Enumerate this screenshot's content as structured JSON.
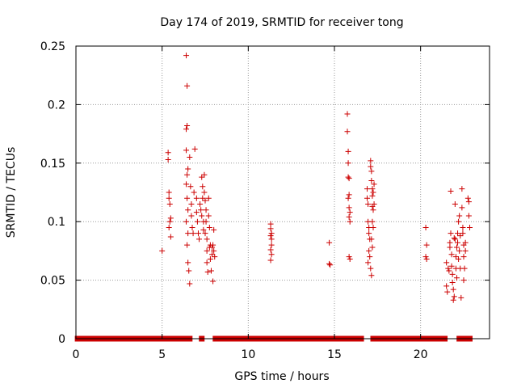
{
  "chart_data": {
    "type": "scatter",
    "title": "Day 174 of 2019, SRMTID for receiver tong",
    "xlabel": "GPS time / hours",
    "ylabel": "SRMTID / TECUs",
    "xlim": [
      0,
      24
    ],
    "ylim": [
      0,
      0.25
    ],
    "x_ticks": [
      0,
      5,
      10,
      15,
      20
    ],
    "x_tick_labels": [
      "0",
      "5",
      "10",
      "15",
      "20"
    ],
    "y_ticks": [
      0,
      0.05,
      0.1,
      0.15,
      0.2,
      0.25
    ],
    "y_tick_labels": [
      "0",
      "0.05",
      "0.1",
      "0.15",
      "0.2",
      "0.25"
    ],
    "grid": true,
    "series_color": "#cc0000",
    "marker": "+",
    "series": [
      {
        "name": "SRMTID",
        "points": [
          [
            5.0,
            0.075
          ],
          [
            5.35,
            0.159
          ],
          [
            5.35,
            0.153
          ],
          [
            5.4,
            0.125
          ],
          [
            5.4,
            0.12
          ],
          [
            5.45,
            0.115
          ],
          [
            5.45,
            0.1
          ],
          [
            5.4,
            0.095
          ],
          [
            5.5,
            0.087
          ],
          [
            5.5,
            0.103
          ],
          [
            6.4,
            0.242
          ],
          [
            6.45,
            0.216
          ],
          [
            6.45,
            0.182
          ],
          [
            6.4,
            0.179
          ],
          [
            6.4,
            0.161
          ],
          [
            6.5,
            0.145
          ],
          [
            6.45,
            0.14
          ],
          [
            6.4,
            0.132
          ],
          [
            6.45,
            0.12
          ],
          [
            6.5,
            0.11
          ],
          [
            6.4,
            0.1
          ],
          [
            6.5,
            0.09
          ],
          [
            6.45,
            0.08
          ],
          [
            6.5,
            0.065
          ],
          [
            6.55,
            0.058
          ],
          [
            6.6,
            0.047
          ],
          [
            6.6,
            0.155
          ],
          [
            6.65,
            0.13
          ],
          [
            6.7,
            0.115
          ],
          [
            6.7,
            0.105
          ],
          [
            6.75,
            0.095
          ],
          [
            6.8,
            0.09
          ],
          [
            6.85,
            0.125
          ],
          [
            6.9,
            0.162
          ],
          [
            7.0,
            0.12
          ],
          [
            7.0,
            0.108
          ],
          [
            7.05,
            0.1
          ],
          [
            7.1,
            0.09
          ],
          [
            7.15,
            0.085
          ],
          [
            7.2,
            0.115
          ],
          [
            7.25,
            0.11
          ],
          [
            7.3,
            0.105
          ],
          [
            7.3,
            0.138
          ],
          [
            7.35,
            0.13
          ],
          [
            7.35,
            0.12
          ],
          [
            7.4,
            0.1
          ],
          [
            7.4,
            0.093
          ],
          [
            7.45,
            0.14
          ],
          [
            7.45,
            0.125
          ],
          [
            7.5,
            0.118
          ],
          [
            7.5,
            0.09
          ],
          [
            7.55,
            0.11
          ],
          [
            7.55,
            0.1
          ],
          [
            7.6,
            0.085
          ],
          [
            7.6,
            0.075
          ],
          [
            7.6,
            0.065
          ],
          [
            7.65,
            0.057
          ],
          [
            7.7,
            0.12
          ],
          [
            7.7,
            0.105
          ],
          [
            7.75,
            0.095
          ],
          [
            7.75,
            0.078
          ],
          [
            7.8,
            0.08
          ],
          [
            7.8,
            0.068
          ],
          [
            7.85,
            0.058
          ],
          [
            7.9,
            0.078
          ],
          [
            7.9,
            0.072
          ],
          [
            7.95,
            0.08
          ],
          [
            7.95,
            0.049
          ],
          [
            8.0,
            0.093
          ],
          [
            8.0,
            0.075
          ],
          [
            8.05,
            0.07
          ],
          [
            11.3,
            0.098
          ],
          [
            11.3,
            0.094
          ],
          [
            11.3,
            0.088
          ],
          [
            11.35,
            0.085
          ],
          [
            11.35,
            0.08
          ],
          [
            11.3,
            0.076
          ],
          [
            11.35,
            0.072
          ],
          [
            11.3,
            0.067
          ],
          [
            11.35,
            0.09
          ],
          [
            14.7,
            0.082
          ],
          [
            14.7,
            0.064
          ],
          [
            14.75,
            0.063
          ],
          [
            15.75,
            0.192
          ],
          [
            15.75,
            0.177
          ],
          [
            15.8,
            0.16
          ],
          [
            15.8,
            0.15
          ],
          [
            15.8,
            0.138
          ],
          [
            15.85,
            0.137
          ],
          [
            15.85,
            0.123
          ],
          [
            15.8,
            0.12
          ],
          [
            15.85,
            0.112
          ],
          [
            15.9,
            0.108
          ],
          [
            15.85,
            0.104
          ],
          [
            15.9,
            0.1
          ],
          [
            15.85,
            0.07
          ],
          [
            15.9,
            0.068
          ],
          [
            16.9,
            0.128
          ],
          [
            16.9,
            0.12
          ],
          [
            16.95,
            0.115
          ],
          [
            16.95,
            0.1
          ],
          [
            17.0,
            0.095
          ],
          [
            17.0,
            0.09
          ],
          [
            17.05,
            0.085
          ],
          [
            17.0,
            0.075
          ],
          [
            17.05,
            0.07
          ],
          [
            16.95,
            0.065
          ],
          [
            17.1,
            0.06
          ],
          [
            17.1,
            0.152
          ],
          [
            17.1,
            0.147
          ],
          [
            17.15,
            0.143
          ],
          [
            17.15,
            0.135
          ],
          [
            17.2,
            0.128
          ],
          [
            17.2,
            0.122
          ],
          [
            17.2,
            0.113
          ],
          [
            17.25,
            0.11
          ],
          [
            17.2,
            0.1
          ],
          [
            17.25,
            0.095
          ],
          [
            17.15,
            0.085
          ],
          [
            17.2,
            0.078
          ],
          [
            17.15,
            0.054
          ],
          [
            17.25,
            0.125
          ],
          [
            17.3,
            0.132
          ],
          [
            17.3,
            0.115
          ],
          [
            20.3,
            0.095
          ],
          [
            20.35,
            0.08
          ],
          [
            20.3,
            0.07
          ],
          [
            20.35,
            0.068
          ],
          [
            21.5,
            0.065
          ],
          [
            21.5,
            0.045
          ],
          [
            21.55,
            0.04
          ],
          [
            21.6,
            0.06
          ],
          [
            21.65,
            0.058
          ],
          [
            21.7,
            0.082
          ],
          [
            21.7,
            0.078
          ],
          [
            21.75,
            0.126
          ],
          [
            21.75,
            0.09
          ],
          [
            21.8,
            0.072
          ],
          [
            21.8,
            0.062
          ],
          [
            21.85,
            0.055
          ],
          [
            21.85,
            0.048
          ],
          [
            21.9,
            0.042
          ],
          [
            21.9,
            0.033
          ],
          [
            21.95,
            0.086
          ],
          [
            21.95,
            0.036
          ],
          [
            22.0,
            0.115
          ],
          [
            22.0,
            0.085
          ],
          [
            22.05,
            0.07
          ],
          [
            22.05,
            0.06
          ],
          [
            22.1,
            0.052
          ],
          [
            22.1,
            0.078
          ],
          [
            22.15,
            0.082
          ],
          [
            22.15,
            0.09
          ],
          [
            22.2,
            0.1
          ],
          [
            22.2,
            0.068
          ],
          [
            22.25,
            0.105
          ],
          [
            22.25,
            0.075
          ],
          [
            22.3,
            0.088
          ],
          [
            22.3,
            0.06
          ],
          [
            22.35,
            0.035
          ],
          [
            22.4,
            0.128
          ],
          [
            22.4,
            0.112
          ],
          [
            22.45,
            0.095
          ],
          [
            22.45,
            0.09
          ],
          [
            22.5,
            0.08
          ],
          [
            22.5,
            0.07
          ],
          [
            22.55,
            0.06
          ],
          [
            22.5,
            0.05
          ],
          [
            22.6,
            0.075
          ],
          [
            22.6,
            0.082
          ],
          [
            22.75,
            0.12
          ],
          [
            22.8,
            0.117
          ],
          [
            22.8,
            0.105
          ],
          [
            22.85,
            0.095
          ]
        ],
        "zero_runs": [
          [
            0.1,
            6.5
          ],
          [
            6.6,
            6.6
          ],
          [
            7.3,
            7.3
          ],
          [
            8.1,
            14.75
          ],
          [
            14.9,
            16.55
          ],
          [
            17.25,
            21.4
          ],
          [
            22.25,
            22.3
          ],
          [
            22.6,
            22.85
          ]
        ]
      }
    ]
  }
}
